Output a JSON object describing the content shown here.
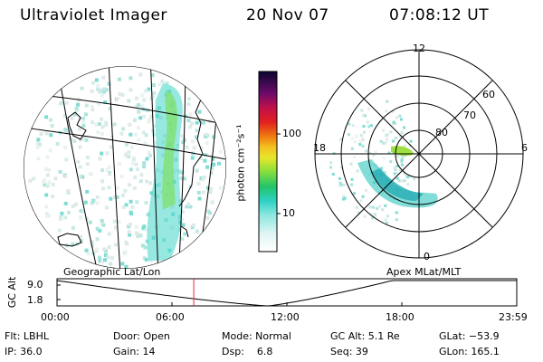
{
  "header": {
    "title": "Ultraviolet Imager",
    "date": "20 Nov 07",
    "time": "07:08:12 UT"
  },
  "colorbar": {
    "unit_label": "photon cm⁻²s⁻¹",
    "ticks": [
      "100",
      "10"
    ]
  },
  "polar": {
    "lat_labels": [
      "80",
      "70",
      "60"
    ],
    "mlt_labels": [
      "12",
      "18",
      "6",
      "0"
    ]
  },
  "plot_labels": {
    "left_label": "Geographic Lat/Lon",
    "right_label": "Apex MLat/MLT"
  },
  "alt_plot": {
    "axis_label": "GC Alt",
    "y_ticks": [
      "9.0",
      "1.8"
    ],
    "x_ticks": [
      "00:00",
      "06:00",
      "12:00",
      "18:00",
      "23:59"
    ],
    "current_hour": 7.14
  },
  "info": {
    "flt": "Flt: LBHL",
    "ip": "IP: 36.0",
    "door": "Door: Open",
    "gain": "Gain: 14",
    "mode": "Mode: Normal",
    "dsp": "Dsp:    6.8",
    "gcalt": "GC Alt: 5.1 Re",
    "seq": "Seq: 39",
    "glat": "GLat: −53.9",
    "glon": "GLon: 165.1"
  }
}
